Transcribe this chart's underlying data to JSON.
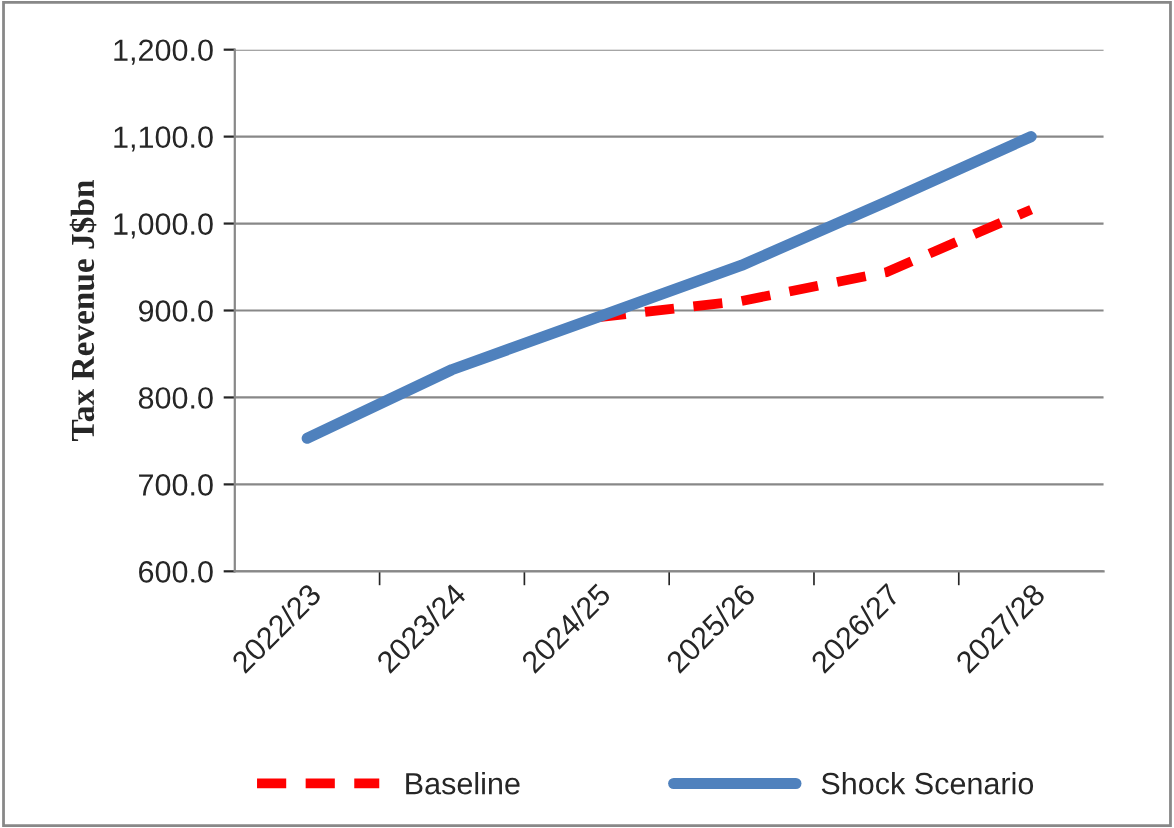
{
  "chart_data": {
    "type": "line",
    "ylabel": "Tax Revenue J$bn",
    "categories": [
      "2022/23",
      "2023/24",
      "2024/25",
      "2025/26",
      "2026/27",
      "2027/28"
    ],
    "series": [
      {
        "name": "Baseline",
        "color": "#ff0000",
        "line_style": "dashed",
        "values": [
          null,
          null,
          892,
          911,
          944,
          1016
        ]
      },
      {
        "name": "Shock Scenario",
        "color": "#4f81bd",
        "line_style": "solid",
        "values": [
          753,
          832,
          892,
          952,
          1025,
          1100
        ]
      }
    ],
    "ylim": [
      600,
      1200
    ],
    "yticks": [
      {
        "value": 600,
        "label": "600.0"
      },
      {
        "value": 700,
        "label": "700.0"
      },
      {
        "value": 800,
        "label": "800.0"
      },
      {
        "value": 900,
        "label": "900.0"
      },
      {
        "value": 1000,
        "label": "1,000.0"
      },
      {
        "value": 1100,
        "label": "1,100.0"
      },
      {
        "value": 1200,
        "label": "1,200.0"
      }
    ],
    "grid": "y",
    "legend": "bottom",
    "marker": "none"
  }
}
